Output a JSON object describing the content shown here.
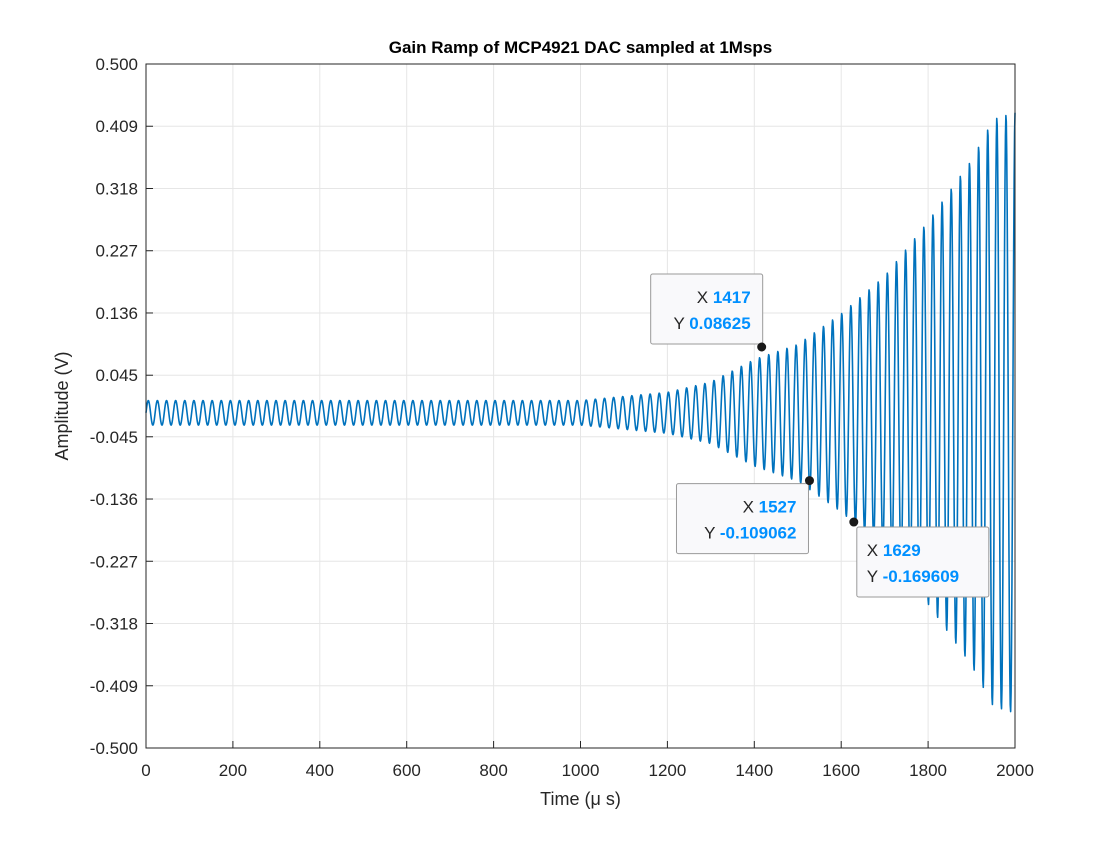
{
  "chart_data": {
    "type": "line",
    "title": "Gain Ramp of MCP4921 DAC sampled at 1Msps",
    "xlabel": "Time (μ s)",
    "ylabel": "Amplitude (V)",
    "xlim": [
      0,
      2000
    ],
    "ylim": [
      -0.5,
      0.5
    ],
    "xticks": [
      0,
      200,
      400,
      600,
      800,
      1000,
      1200,
      1400,
      1600,
      1800,
      2000
    ],
    "xtick_labels": [
      "0",
      "200",
      "400",
      "600",
      "800",
      "1000",
      "1200",
      "1400",
      "1600",
      "1800",
      "2000"
    ],
    "yticks": [
      0.5,
      0.409,
      0.318,
      0.227,
      0.136,
      0.045,
      -0.045,
      -0.136,
      -0.227,
      -0.318,
      -0.409,
      -0.5
    ],
    "ytick_labels": [
      "0.500",
      "0.409",
      "0.318",
      "0.227",
      "0.136",
      "0.045",
      "-0.045",
      "-0.136",
      "-0.227",
      "-0.318",
      "-0.409",
      "-0.500"
    ],
    "grid": true,
    "series_color": "#0072BD",
    "signal": {
      "period_us": 21,
      "offset_v": -0.01,
      "amplitude_envelope": [
        {
          "t": 0,
          "a": 0.018
        },
        {
          "t": 1000,
          "a": 0.018
        },
        {
          "t": 1200,
          "a": 0.03
        },
        {
          "t": 1300,
          "a": 0.045
        },
        {
          "t": 1400,
          "a": 0.078
        },
        {
          "t": 1500,
          "a": 0.1
        },
        {
          "t": 1600,
          "a": 0.145
        },
        {
          "t": 1700,
          "a": 0.2
        },
        {
          "t": 1800,
          "a": 0.28
        },
        {
          "t": 1850,
          "a": 0.325
        },
        {
          "t": 1900,
          "a": 0.37
        },
        {
          "t": 1950,
          "a": 0.43
        },
        {
          "t": 2000,
          "a": 0.44
        }
      ]
    },
    "datatips": [
      {
        "x": 1417,
        "y": 0.08625,
        "x_label": "X",
        "x_text": "1417",
        "y_label": "Y",
        "y_text": "0.08625"
      },
      {
        "x": 1527,
        "y": -0.109062,
        "x_label": "X",
        "x_text": "1527",
        "y_label": "Y",
        "y_text": "-0.109062"
      },
      {
        "x": 1629,
        "y": -0.169609,
        "x_label": "X",
        "x_text": "1629",
        "y_label": "Y",
        "y_text": "-0.169609"
      }
    ]
  }
}
